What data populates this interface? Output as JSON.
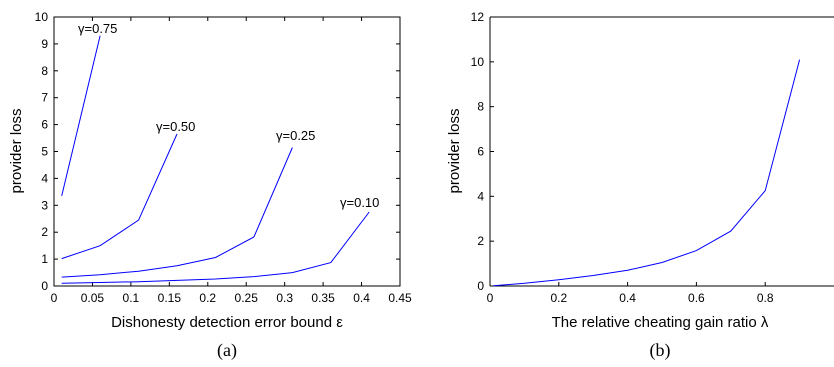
{
  "chart_data": [
    {
      "type": "line",
      "xlabel": "Dishonesty detection error bound ε",
      "ylabel": "provider loss",
      "caption": "(a)",
      "xlim": [
        0,
        0.45
      ],
      "ylim": [
        0,
        10
      ],
      "xticks": [
        "0",
        "0.05",
        "0.1",
        "0.15",
        "0.2",
        "0.25",
        "0.3",
        "0.35",
        "0.4",
        "0.45"
      ],
      "yticks": [
        "0",
        "1",
        "2",
        "3",
        "4",
        "5",
        "6",
        "7",
        "8",
        "9",
        "10"
      ],
      "series": [
        {
          "name": "γ=0.75",
          "x": [
            0.01,
            0.06
          ],
          "y": [
            3.35,
            9.3
          ]
        },
        {
          "name": "γ=0.50",
          "x": [
            0.01,
            0.06,
            0.11,
            0.16
          ],
          "y": [
            1.02,
            1.5,
            2.45,
            5.65
          ]
        },
        {
          "name": "γ=0.25",
          "x": [
            0.01,
            0.06,
            0.11,
            0.16,
            0.21,
            0.26,
            0.31
          ],
          "y": [
            0.33,
            0.42,
            0.55,
            0.75,
            1.06,
            1.82,
            5.15
          ]
        },
        {
          "name": "γ=0.10",
          "x": [
            0.01,
            0.06,
            0.11,
            0.16,
            0.21,
            0.26,
            0.31,
            0.36,
            0.41
          ],
          "y": [
            0.1,
            0.13,
            0.16,
            0.21,
            0.26,
            0.35,
            0.5,
            0.87,
            2.75
          ]
        }
      ]
    },
    {
      "type": "line",
      "xlabel": "The relative cheating gain ratio λ",
      "ylabel": "provider loss",
      "caption": "(b)",
      "xlim": [
        0,
        1
      ],
      "ylim": [
        0,
        12
      ],
      "xticks": [
        "0",
        "0.2",
        "0.4",
        "0.6",
        "0.8"
      ],
      "yticks": [
        "0",
        "2",
        "4",
        "6",
        "8",
        "10",
        "12"
      ],
      "series": [
        {
          "x": [
            0.01,
            0.1,
            0.2,
            0.3,
            0.4,
            0.5,
            0.6,
            0.7,
            0.8,
            0.9
          ],
          "y": [
            0.01,
            0.12,
            0.28,
            0.47,
            0.7,
            1.05,
            1.58,
            2.45,
            4.25,
            10.1
          ]
        }
      ]
    }
  ]
}
